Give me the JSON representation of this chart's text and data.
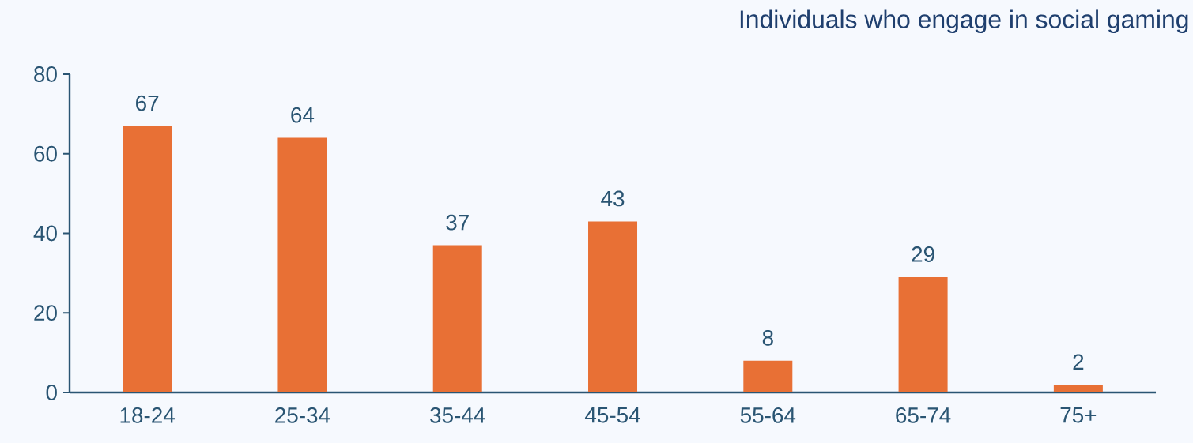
{
  "chart_data": {
    "type": "bar",
    "title": "Individuals who engage in social gaming",
    "categories": [
      "18-24",
      "25-34",
      "35-44",
      "45-54",
      "55-64",
      "65-74",
      "75+"
    ],
    "values": [
      67,
      64,
      37,
      43,
      8,
      29,
      2
    ],
    "color": "#e87035",
    "ylim": [
      0,
      80
    ],
    "yticks": [
      0,
      20,
      40,
      60,
      80
    ],
    "data_labels": true
  }
}
